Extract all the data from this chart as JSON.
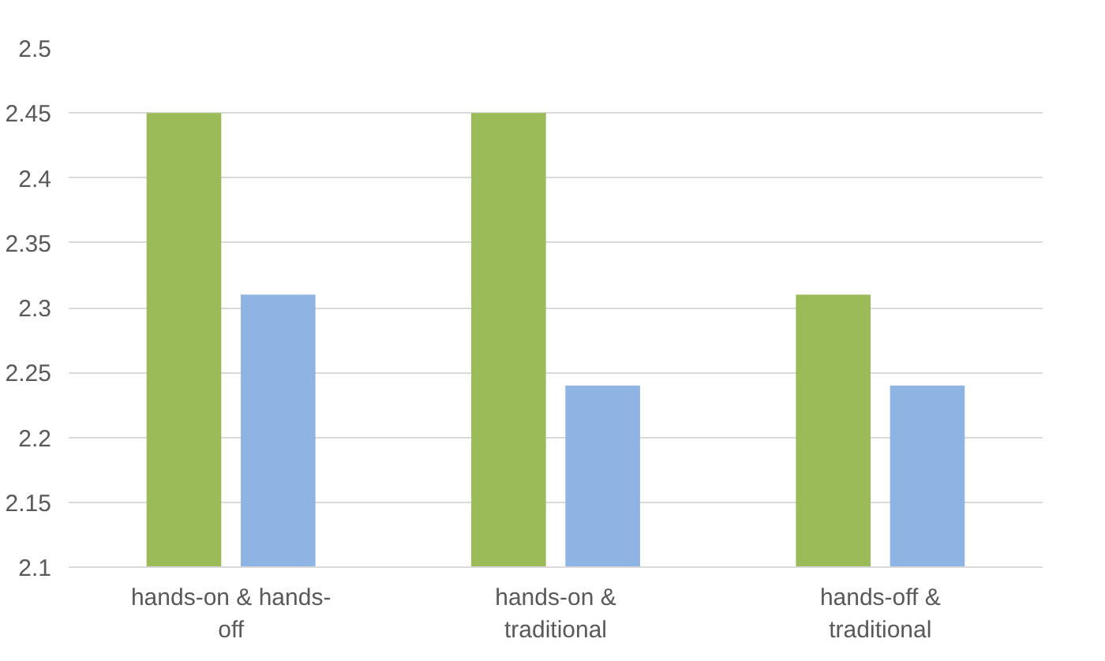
{
  "chart_data": {
    "type": "bar",
    "categories": [
      "hands-on & hands-off",
      "hands-on & traditional",
      "hands-off & traditional"
    ],
    "series": [
      {
        "color": "#9bbb59",
        "values": [
          2.45,
          2.45,
          2.31
        ]
      },
      {
        "color": "#8eb4e3",
        "values": [
          2.31,
          2.24,
          2.24
        ]
      }
    ],
    "ylim": [
      2.1,
      2.5
    ],
    "yticks": [
      2.1,
      2.15,
      2.2,
      2.25,
      2.3,
      2.35,
      2.4,
      2.45,
      2.5
    ],
    "grid": "y"
  }
}
